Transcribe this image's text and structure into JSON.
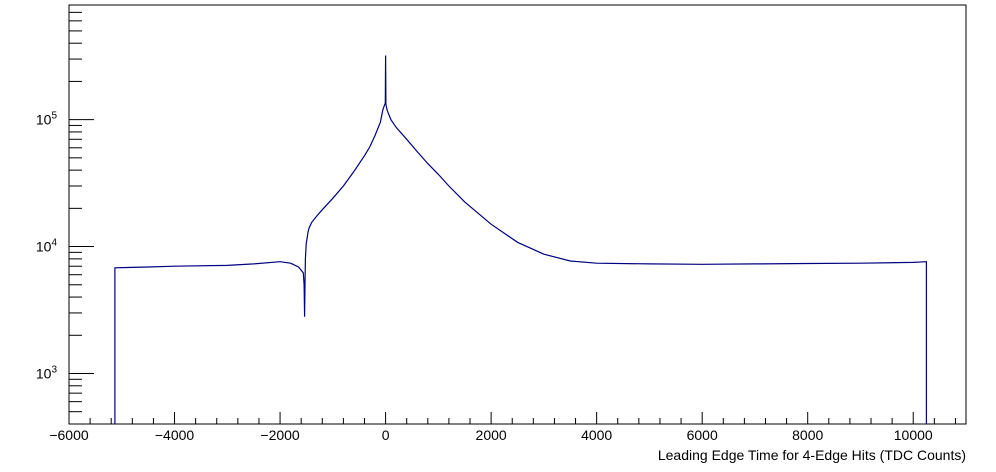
{
  "chart_data": {
    "type": "line",
    "title": "",
    "xlabel": "Leading Edge Time for 4-Edge Hits (TDC Counts)",
    "ylabel": "",
    "xlim": [
      -6000,
      11000
    ],
    "ylim": [
      400,
      800000
    ],
    "yscale": "log",
    "grid": false,
    "legend": "none",
    "line_color": "#000080",
    "x_ticks": [
      -6000,
      -4000,
      -2000,
      0,
      2000,
      4000,
      6000,
      8000,
      10000
    ],
    "x_tick_labels": [
      "−6000",
      "−4000",
      "−2000",
      "0",
      "2000",
      "4000",
      "6000",
      "8000",
      "10000"
    ],
    "y_ticks": [
      1000,
      10000,
      100000
    ],
    "y_tick_labels": [
      {
        "base": "10",
        "exp": "3"
      },
      {
        "base": "10",
        "exp": "4"
      },
      {
        "base": "10",
        "exp": "5"
      }
    ],
    "series": [
      {
        "x": [
          -5130,
          -5130,
          -4500,
          -4000,
          -3000,
          -2500,
          -2000,
          -1800,
          -1650,
          -1560,
          -1545,
          -1535,
          -1530,
          -1520,
          -1505,
          -1490,
          -1470,
          -1450,
          -1400,
          -1300,
          -1200,
          -1000,
          -800,
          -600,
          -400,
          -300,
          -200,
          -100,
          -50,
          -20,
          -5,
          0,
          5,
          10,
          30,
          100,
          200,
          400,
          600,
          800,
          1000,
          1200,
          1500,
          2000,
          2500,
          3000,
          3500,
          4000,
          5000,
          6000,
          7000,
          8000,
          9000,
          10000,
          10250,
          10250
        ],
        "y": [
          400,
          6800,
          6900,
          7000,
          7100,
          7300,
          7600,
          7400,
          6900,
          6200,
          5000,
          2800,
          4500,
          8000,
          10500,
          11500,
          13000,
          14000,
          15500,
          17500,
          19500,
          24000,
          30000,
          39000,
          52000,
          61000,
          75000,
          95000,
          120000,
          130000,
          135000,
          320000,
          135000,
          130000,
          118000,
          100000,
          87000,
          70000,
          56000,
          45000,
          37000,
          30000,
          22500,
          15000,
          10800,
          8700,
          7700,
          7400,
          7300,
          7250,
          7300,
          7350,
          7400,
          7500,
          7600,
          400
        ]
      }
    ]
  }
}
